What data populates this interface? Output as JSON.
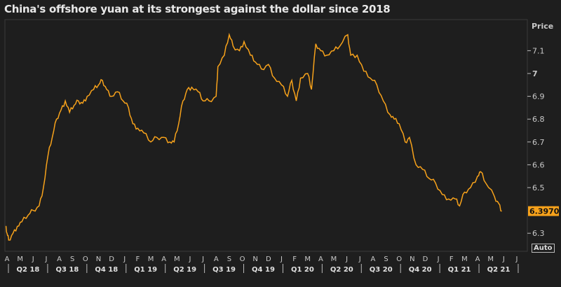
{
  "chart_data": {
    "type": "line",
    "title": "China's offshore yuan at its strongest against the dollar since 2018",
    "ylabel": "Price",
    "ylim": [
      6.22,
      7.24
    ],
    "yticks": [
      "7.1",
      "7",
      "6.9",
      "6.8",
      "6.7",
      "6.6",
      "6.5",
      "6.3"
    ],
    "ytick_values": [
      7.1,
      7.0,
      6.9,
      6.8,
      6.7,
      6.6,
      6.5,
      6.3
    ],
    "last_value_label": "6.3970",
    "months": [
      "A",
      "M",
      "J",
      "J",
      "A",
      "S",
      "O",
      "N",
      "D",
      "J",
      "F",
      "M",
      "A",
      "M",
      "J",
      "J",
      "A",
      "S",
      "O",
      "N",
      "D",
      "J",
      "F",
      "M",
      "A",
      "M",
      "J",
      "J",
      "A",
      "S",
      "O",
      "N",
      "D",
      "J",
      "F",
      "M",
      "A",
      "M",
      "J",
      "J"
    ],
    "quarters": [
      "Q2 18",
      "Q3 18",
      "Q4 18",
      "Q1 19",
      "Q2 19",
      "Q3 19",
      "Q4 19",
      "Q1 20",
      "Q2 20",
      "Q3 20",
      "Q4 20",
      "Q1 21",
      "Q2 21"
    ],
    "grid": false,
    "line_color": "#f7a21b",
    "series": [
      {
        "x": [
          "2018-03-28",
          "2018-04-01",
          "2018-04-05",
          "2018-04-15",
          "2018-04-25",
          "2018-05-05",
          "2018-05-20",
          "2018-06-01",
          "2018-06-15",
          "2018-06-25",
          "2018-07-05",
          "2018-07-15",
          "2018-07-25",
          "2018-08-05",
          "2018-08-15",
          "2018-08-25",
          "2018-09-05",
          "2018-09-15",
          "2018-09-25",
          "2018-10-05",
          "2018-10-20",
          "2018-11-01",
          "2018-11-10",
          "2018-11-20",
          "2018-12-01",
          "2018-12-15",
          "2018-12-28",
          "2019-01-10",
          "2019-01-20",
          "2019-02-01",
          "2019-02-15",
          "2019-03-01",
          "2019-03-15",
          "2019-04-01",
          "2019-04-15",
          "2019-04-25",
          "2019-05-05",
          "2019-05-15",
          "2019-05-25",
          "2019-06-05",
          "2019-06-20",
          "2019-07-01",
          "2019-07-15",
          "2019-08-01",
          "2019-08-05",
          "2019-08-20",
          "2019-09-01",
          "2019-09-10",
          "2019-09-25",
          "2019-10-05",
          "2019-10-20",
          "2019-11-01",
          "2019-11-15",
          "2019-12-01",
          "2019-12-15",
          "2020-01-01",
          "2020-01-15",
          "2020-01-25",
          "2020-02-05",
          "2020-02-15",
          "2020-03-01",
          "2020-03-10",
          "2020-03-20",
          "2020-04-01",
          "2020-04-15",
          "2020-05-01",
          "2020-05-15",
          "2020-06-03",
          "2020-06-10",
          "2020-06-25",
          "2020-07-10",
          "2020-07-25",
          "2020-08-10",
          "2020-08-25",
          "2020-09-10",
          "2020-09-20",
          "2020-10-01",
          "2020-10-15",
          "2020-10-25",
          "2020-11-10",
          "2020-11-25",
          "2020-12-10",
          "2020-12-25",
          "2021-01-10",
          "2021-01-25",
          "2021-02-10",
          "2021-02-20",
          "2021-03-01",
          "2021-03-15",
          "2021-04-01",
          "2021-04-08",
          "2021-04-20",
          "2021-05-10",
          "2021-05-20",
          "2021-05-27"
        ],
        "y": [
          6.33,
          6.3,
          6.27,
          6.3,
          6.33,
          6.35,
          6.38,
          6.4,
          6.42,
          6.5,
          6.64,
          6.72,
          6.8,
          6.84,
          6.88,
          6.83,
          6.86,
          6.88,
          6.87,
          6.9,
          6.93,
          6.95,
          6.97,
          6.93,
          6.9,
          6.92,
          6.88,
          6.85,
          6.78,
          6.76,
          6.74,
          6.7,
          6.72,
          6.72,
          6.7,
          6.7,
          6.78,
          6.88,
          6.93,
          6.94,
          6.92,
          6.88,
          6.88,
          6.9,
          7.03,
          7.08,
          7.17,
          7.12,
          7.1,
          7.14,
          7.08,
          7.05,
          7.02,
          7.04,
          6.98,
          6.95,
          6.9,
          6.97,
          6.88,
          6.98,
          7.0,
          6.93,
          7.13,
          7.1,
          7.08,
          7.1,
          7.12,
          7.17,
          7.08,
          7.08,
          7.01,
          6.98,
          6.95,
          6.88,
          6.82,
          6.8,
          6.78,
          6.7,
          6.72,
          6.6,
          6.58,
          6.54,
          6.52,
          6.47,
          6.45,
          6.45,
          6.42,
          6.48,
          6.5,
          6.55,
          6.57,
          6.52,
          6.46,
          6.43,
          6.397
        ]
      }
    ]
  },
  "controls": {
    "auto_label": "Auto"
  }
}
